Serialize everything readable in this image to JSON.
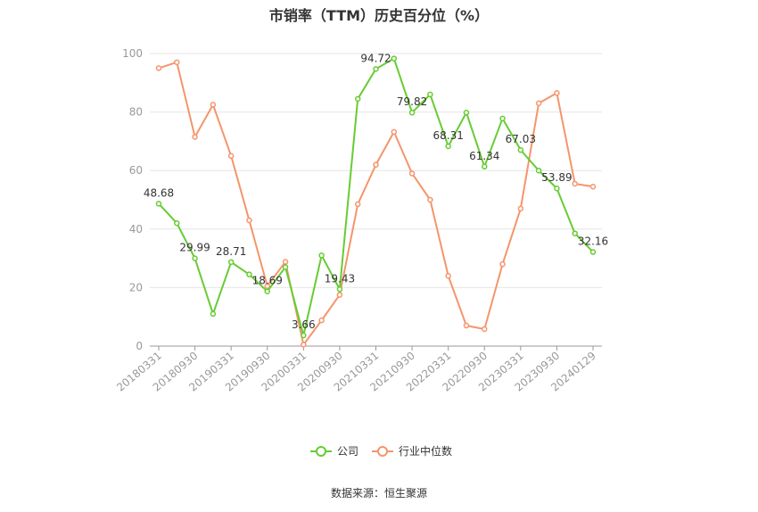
{
  "chart_data": {
    "type": "line",
    "title": "市销率（TTM）历史百分位（%）",
    "source": "数据来源：恒生聚源",
    "ylim": [
      0,
      100
    ],
    "yticks": [
      0,
      20,
      40,
      60,
      80,
      100
    ],
    "grid": true,
    "legend_position": "bottom",
    "x": [
      "20180331",
      "20180630",
      "20180930",
      "20181231",
      "20190331",
      "20190630",
      "20190930",
      "20191231",
      "20200331",
      "20200630",
      "20200930",
      "20201231",
      "20210331",
      "20210630",
      "20210930",
      "20211231",
      "20220331",
      "20220630",
      "20220930",
      "20221231",
      "20230331",
      "20230630",
      "20230930",
      "20231231",
      "20240129"
    ],
    "xtick_labels": [
      "20180331",
      "20180930",
      "20190331",
      "20190930",
      "20200331",
      "20200930",
      "20210331",
      "20210930",
      "20220331",
      "20220930",
      "20230331",
      "20230930",
      "20240129"
    ],
    "series": [
      {
        "name": "公司",
        "color": "#66cc33",
        "values": [
          48.68,
          42.0,
          29.99,
          11.0,
          28.71,
          24.5,
          18.69,
          27.0,
          3.66,
          31.0,
          19.43,
          84.5,
          94.72,
          98.3,
          79.82,
          86.0,
          68.31,
          79.8,
          61.34,
          77.8,
          67.03,
          60.0,
          53.89,
          38.5,
          32.16
        ],
        "labels": {
          "0": "48.68",
          "2": "29.99",
          "4": "28.71",
          "6": "18.69",
          "8": "3.66",
          "10": "19.43",
          "12": "94.72",
          "14": "79.82",
          "16": "68.31",
          "18": "61.34",
          "20": "67.03",
          "22": "53.89",
          "24": "32.16"
        }
      },
      {
        "name": "行业中位数",
        "color": "#f4956b",
        "values": [
          95.0,
          97.0,
          71.5,
          82.5,
          65.0,
          43.0,
          20.5,
          28.8,
          0.5,
          8.8,
          17.5,
          48.5,
          62.0,
          73.2,
          59.0,
          50.0,
          24.0,
          7.0,
          5.8,
          28.0,
          47.0,
          83.0,
          86.5,
          55.5,
          54.5
        ]
      }
    ]
  }
}
